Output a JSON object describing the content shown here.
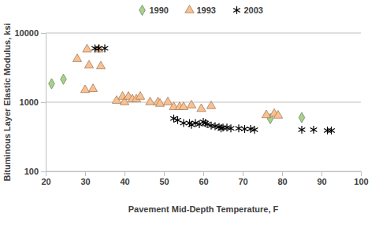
{
  "chart_data": {
    "type": "scatter",
    "x_label": "Pavement Mid-Depth Temperature, F",
    "y_label": "Bituminous Layer Elastic Modulus, ksi",
    "xlim": [
      20,
      100
    ],
    "xticks": [
      20,
      30,
      40,
      50,
      60,
      70,
      80,
      90,
      100
    ],
    "ylim": [
      100,
      10000
    ],
    "yticks": [
      100,
      1000,
      10000
    ],
    "log": "y",
    "grid": true,
    "legend": "top",
    "series": [
      {
        "name": "1990",
        "color": "#a9d18e",
        "marker": "diamond",
        "x": [
          21.5,
          24.5,
          77,
          85
        ],
        "values": [
          1850,
          2150,
          580,
          600
        ]
      },
      {
        "name": "1993",
        "color": "#fac090",
        "marker": "triangle",
        "x": [
          28,
          30.5,
          31,
          30,
          32,
          33.5,
          34,
          38,
          39.5,
          40,
          41,
          42,
          43,
          44,
          46.5,
          48.5,
          49,
          51,
          52.5,
          54,
          55,
          57,
          59.5,
          62,
          76,
          78,
          79
        ],
        "values": [
          4200,
          5800,
          3400,
          1500,
          1550,
          5800,
          3300,
          1050,
          1200,
          1000,
          1200,
          1100,
          1100,
          1200,
          1000,
          1000,
          950,
          1000,
          850,
          850,
          850,
          900,
          800,
          880,
          650,
          680,
          640
        ]
      },
      {
        "name": "2003",
        "color": "#000000",
        "marker": "asterisk",
        "x": [
          32.5,
          33.5,
          35,
          52.5,
          53.5,
          55,
          56.5,
          57,
          58,
          59,
          60,
          60.5,
          61,
          62,
          63,
          64,
          64.5,
          65,
          66,
          67,
          69,
          70.5,
          72,
          73,
          85,
          88,
          91.5,
          92.5
        ],
        "values": [
          6000,
          6000,
          6000,
          580,
          550,
          500,
          500,
          470,
          500,
          480,
          520,
          500,
          480,
          460,
          450,
          440,
          420,
          430,
          430,
          420,
          420,
          410,
          410,
          400,
          400,
          400,
          390,
          390
        ]
      }
    ]
  }
}
